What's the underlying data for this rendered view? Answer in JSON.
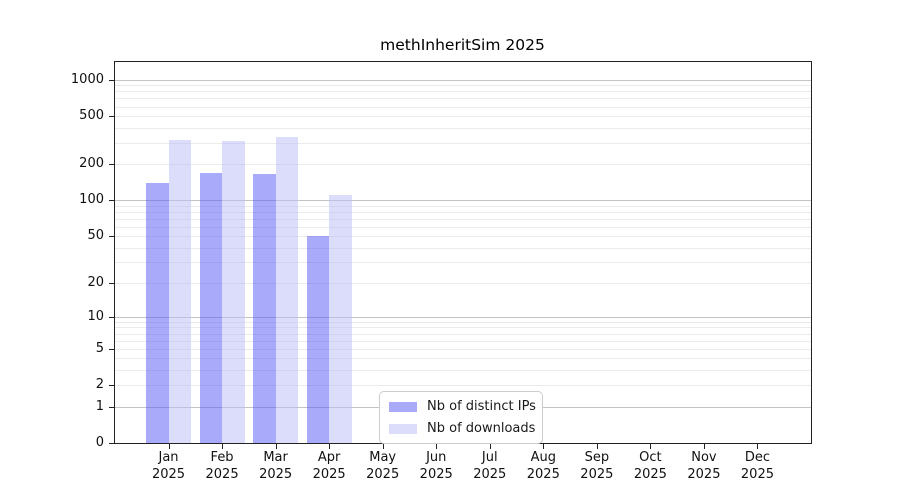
{
  "chart_data": {
    "type": "bar",
    "title": "methInheritSim 2025",
    "categories": [
      "Jan",
      "Feb",
      "Mar",
      "Apr",
      "May",
      "Jun",
      "Jul",
      "Aug",
      "Sep",
      "Oct",
      "Nov",
      "Dec"
    ],
    "x_year_label": "2025",
    "series": [
      {
        "name": "Nb of distinct IPs",
        "color": "#a8a8f8",
        "fill_rgba": "rgba(85,85,245,0.5)",
        "values": [
          140,
          170,
          165,
          50,
          0,
          0,
          0,
          0,
          0,
          0,
          0,
          0
        ]
      },
      {
        "name": "Nb of downloads",
        "color": "#dcdcfa",
        "fill_rgba": "rgba(185,185,248,0.5)",
        "values": [
          320,
          310,
          335,
          110,
          0,
          0,
          0,
          0,
          0,
          0,
          0,
          0
        ]
      }
    ],
    "yscale": "log1p",
    "ylabel": "",
    "xlabel": "",
    "yticks": [
      0,
      1,
      2,
      5,
      10,
      20,
      50,
      100,
      200,
      500,
      1000
    ],
    "y_axis_top_value": 1400,
    "y_major_gridlines": [
      1,
      10,
      100,
      1000
    ],
    "y_minor_gridlines": [
      2,
      3,
      4,
      5,
      6,
      7,
      8,
      9,
      20,
      30,
      40,
      50,
      60,
      70,
      80,
      90,
      200,
      300,
      400,
      500,
      600,
      700,
      800,
      900
    ],
    "grid": "horizontal",
    "legend_position": "bottom-center"
  }
}
